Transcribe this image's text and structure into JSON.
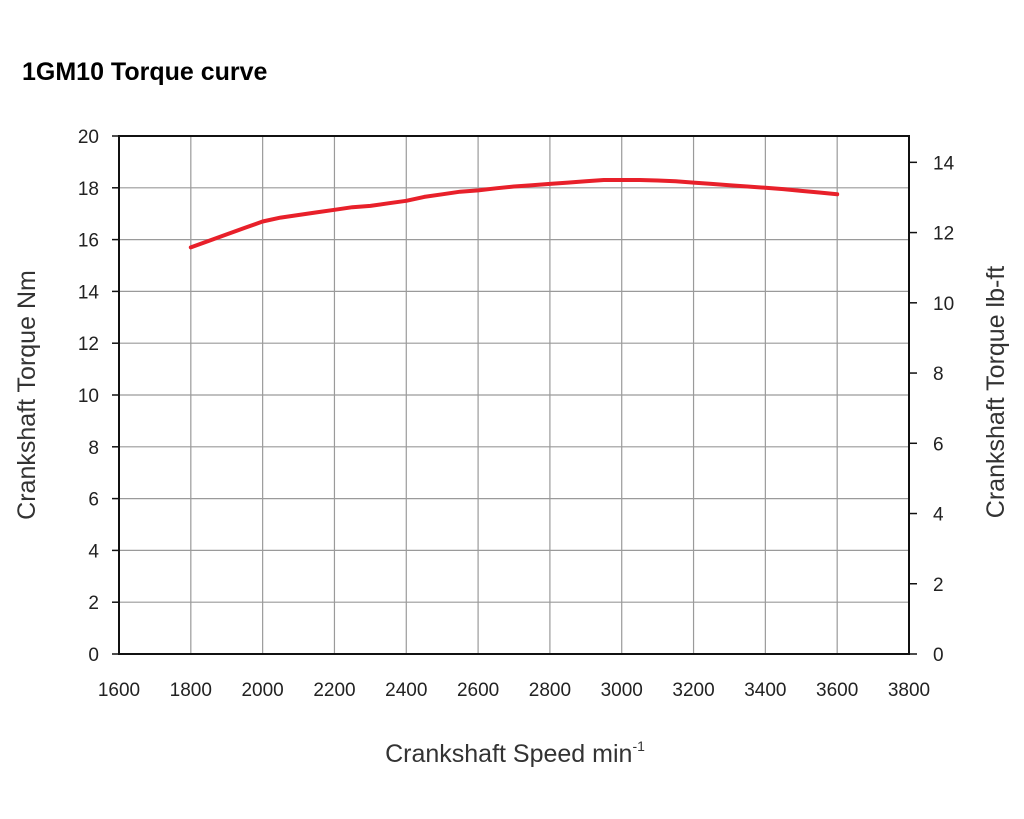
{
  "chart_data": {
    "type": "line",
    "title": "1GM10 Torque curve",
    "xlabel": "Crankshaft Speed min",
    "xlabel_superscript": "-1",
    "ylabel": "Crankshaft Torque  Nm",
    "y2label": "Crankshaft Torque  lb-ft",
    "xlim": [
      1600,
      3800
    ],
    "ylim": [
      0,
      20
    ],
    "y2lim": [
      0,
      14.75
    ],
    "x_ticks": [
      "1600",
      "1800",
      "2000",
      "2200",
      "2400",
      "2600",
      "2800",
      "3000",
      "3200",
      "3400",
      "3600",
      "3800"
    ],
    "y_ticks": [
      "0",
      "2",
      "4",
      "6",
      "8",
      "10",
      "12",
      "14",
      "16",
      "18",
      "20"
    ],
    "y2_ticks": [
      "0",
      "2",
      "4",
      "6",
      "8",
      "10",
      "12",
      "14"
    ],
    "grid": true,
    "series": [
      {
        "color": "#e8202a",
        "x": [
          1800,
          1850,
          1900,
          1950,
          2000,
          2050,
          2100,
          2150,
          2200,
          2250,
          2300,
          2350,
          2400,
          2450,
          2500,
          2550,
          2600,
          2650,
          2700,
          2750,
          2800,
          2850,
          2900,
          2950,
          3000,
          3050,
          3100,
          3150,
          3200,
          3250,
          3300,
          3350,
          3400,
          3450,
          3500,
          3550,
          3600
        ],
        "y": [
          15.7,
          15.95,
          16.2,
          16.45,
          16.7,
          16.85,
          16.95,
          17.05,
          17.15,
          17.25,
          17.3,
          17.4,
          17.5,
          17.65,
          17.75,
          17.85,
          17.9,
          17.98,
          18.05,
          18.1,
          18.15,
          18.2,
          18.25,
          18.3,
          18.3,
          18.3,
          18.28,
          18.25,
          18.2,
          18.15,
          18.1,
          18.05,
          18.0,
          17.95,
          17.88,
          17.82,
          17.75
        ]
      }
    ]
  }
}
